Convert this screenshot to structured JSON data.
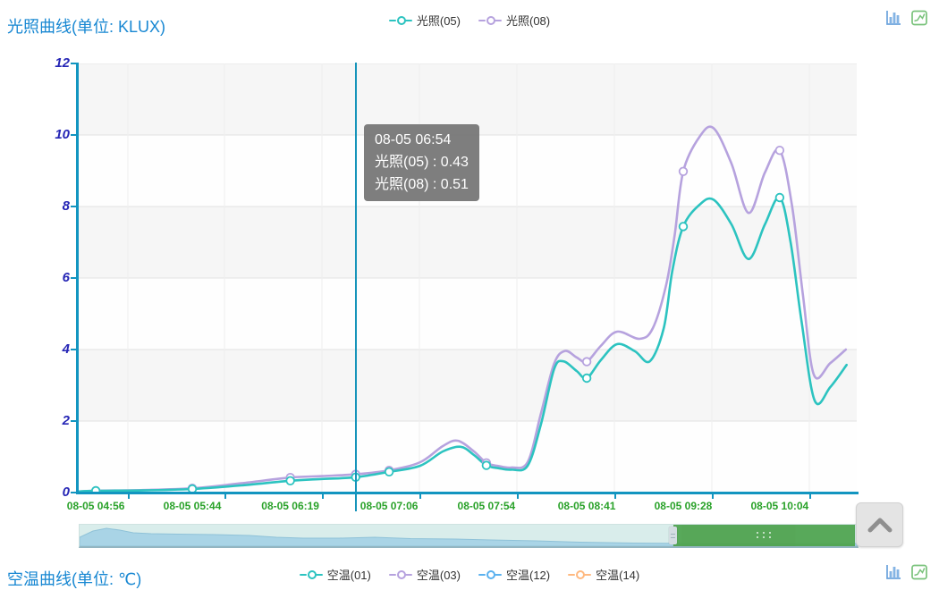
{
  "chart1": {
    "title": "光照曲线(单位: KLUX)",
    "legend": [
      {
        "label": "光照(05)",
        "color": "#2cc3c0"
      },
      {
        "label": "光照(08)",
        "color": "#b6a2de"
      }
    ],
    "toolbox": [
      {
        "icon": "bar-chart-icon"
      },
      {
        "icon": "line-chart-icon"
      }
    ]
  },
  "tooltip": {
    "lines": [
      "08-05 06:54",
      "光照(05) : 0.43",
      "光照(08) : 0.51"
    ]
  },
  "chart_data": {
    "type": "line",
    "title": "光照曲线(单位: KLUX)",
    "unit": "KLUX",
    "x_tick_labels": [
      "08-05 04:56",
      "08-05 05:44",
      "08-05 06:19",
      "08-05 07:06",
      "08-05 07:54",
      "08-05 08:41",
      "08-05 09:28",
      "08-05 10:04"
    ],
    "x_tick_pct": [
      2.2,
      14.6,
      27.2,
      39.9,
      52.4,
      65.3,
      77.7,
      90.1
    ],
    "ylim": [
      0,
      12
    ],
    "y_ticks": [
      0,
      2,
      4,
      6,
      8,
      10,
      12
    ],
    "grid": true,
    "legend_position": "top-center",
    "hover": {
      "x_pct": 35.6,
      "label": "08-05 06:54",
      "values": {
        "光照(05)": 0.43,
        "光照(08)": 0.51
      }
    },
    "axis_colors": {
      "axis_line": "#1295c0",
      "pointer": "#1694ba",
      "y_label": "#2525b5",
      "x_label": "#2aa22a"
    },
    "series": [
      {
        "name": "光照(05)",
        "color": "#2cc3c0",
        "tick_values": [
          0.05,
          0.1,
          0.33,
          0.58,
          0.76,
          3.2,
          7.44,
          8.25
        ],
        "hover_value": 0.43,
        "markers": [
          [
            2.2,
            0.05
          ],
          [
            14.6,
            0.1
          ],
          [
            27.2,
            0.33
          ],
          [
            35.6,
            0.43
          ],
          [
            39.9,
            0.58
          ],
          [
            52.4,
            0.76
          ],
          [
            65.3,
            3.2
          ],
          [
            77.7,
            7.44
          ],
          [
            90.1,
            8.25
          ]
        ],
        "points": [
          [
            0,
            0.03
          ],
          [
            2.0,
            0.05
          ],
          [
            8.3,
            0.06
          ],
          [
            14.6,
            0.1
          ],
          [
            20.9,
            0.2
          ],
          [
            27.2,
            0.33
          ],
          [
            31.3,
            0.38
          ],
          [
            35.6,
            0.43
          ],
          [
            39.9,
            0.58
          ],
          [
            43.9,
            0.75
          ],
          [
            46.8,
            1.15
          ],
          [
            49.1,
            1.28
          ],
          [
            50.8,
            1.05
          ],
          [
            52.4,
            0.76
          ],
          [
            54.0,
            0.68
          ],
          [
            55.6,
            0.64
          ],
          [
            57.7,
            0.75
          ],
          [
            59.4,
            1.9
          ],
          [
            61.1,
            3.45
          ],
          [
            62.3,
            3.67
          ],
          [
            64.0,
            3.4
          ],
          [
            65.3,
            3.2
          ],
          [
            67.1,
            3.7
          ],
          [
            69.2,
            4.15
          ],
          [
            71.5,
            3.95
          ],
          [
            73.4,
            3.67
          ],
          [
            75.2,
            4.6
          ],
          [
            76.3,
            6.2
          ],
          [
            77.7,
            7.44
          ],
          [
            79.8,
            8.05
          ],
          [
            81.6,
            8.19
          ],
          [
            83.9,
            7.5
          ],
          [
            86.1,
            6.53
          ],
          [
            88.2,
            7.5
          ],
          [
            90.1,
            8.25
          ],
          [
            91.5,
            7.0
          ],
          [
            92.9,
            4.8
          ],
          [
            94.6,
            2.57
          ],
          [
            96.6,
            2.95
          ],
          [
            98.7,
            3.57
          ]
        ]
      },
      {
        "name": "光照(08)",
        "color": "#b6a2de",
        "tick_values": [
          0.05,
          0.12,
          0.42,
          0.62,
          0.83,
          3.66,
          8.98,
          9.57
        ],
        "hover_value": 0.51,
        "markers": [
          [
            2.2,
            0.05
          ],
          [
            14.6,
            0.12
          ],
          [
            27.2,
            0.42
          ],
          [
            35.6,
            0.51
          ],
          [
            39.9,
            0.62
          ],
          [
            52.4,
            0.83
          ],
          [
            65.3,
            3.66
          ],
          [
            77.7,
            8.98
          ],
          [
            90.1,
            9.57
          ]
        ],
        "points": [
          [
            0,
            0.03
          ],
          [
            2.0,
            0.05
          ],
          [
            8.3,
            0.07
          ],
          [
            14.6,
            0.12
          ],
          [
            20.9,
            0.26
          ],
          [
            27.2,
            0.42
          ],
          [
            31.3,
            0.46
          ],
          [
            35.6,
            0.51
          ],
          [
            39.9,
            0.62
          ],
          [
            43.9,
            0.85
          ],
          [
            46.8,
            1.3
          ],
          [
            48.7,
            1.45
          ],
          [
            50.8,
            1.15
          ],
          [
            52.4,
            0.83
          ],
          [
            54.0,
            0.74
          ],
          [
            55.6,
            0.7
          ],
          [
            57.7,
            0.85
          ],
          [
            59.4,
            2.2
          ],
          [
            61.1,
            3.6
          ],
          [
            62.5,
            3.96
          ],
          [
            64.0,
            3.78
          ],
          [
            65.3,
            3.66
          ],
          [
            67.1,
            4.1
          ],
          [
            69.2,
            4.5
          ],
          [
            72.1,
            4.3
          ],
          [
            73.8,
            4.6
          ],
          [
            75.5,
            5.8
          ],
          [
            76.6,
            7.2
          ],
          [
            77.7,
            8.98
          ],
          [
            79.8,
            9.95
          ],
          [
            81.6,
            10.19
          ],
          [
            83.9,
            9.2
          ],
          [
            86.1,
            7.82
          ],
          [
            88.2,
            8.95
          ],
          [
            90.1,
            9.57
          ],
          [
            91.7,
            8.0
          ],
          [
            93.1,
            5.5
          ],
          [
            94.5,
            3.29
          ],
          [
            96.6,
            3.62
          ],
          [
            98.6,
            4.0
          ]
        ]
      }
    ]
  },
  "slider": {
    "window_start_pct": 76.3,
    "window_width_pct": 23.3,
    "colors": {
      "track": "#d9edeb",
      "shadow_fill": "#a9d4e6",
      "shadow_line": "#8fc2d8",
      "window": "#52a553",
      "window_shadow": "#3f8c40"
    },
    "shadow": [
      [
        0,
        10
      ],
      [
        15,
        17
      ],
      [
        30,
        20
      ],
      [
        45,
        18
      ],
      [
        60,
        15
      ],
      [
        80,
        14
      ],
      [
        110,
        13.5
      ],
      [
        150,
        13
      ],
      [
        190,
        12
      ],
      [
        220,
        10
      ],
      [
        250,
        9
      ],
      [
        290,
        9
      ],
      [
        330,
        10
      ],
      [
        370,
        8.5
      ],
      [
        420,
        8
      ],
      [
        460,
        7
      ],
      [
        510,
        6
      ],
      [
        560,
        4.5
      ],
      [
        620,
        3.5
      ],
      [
        700,
        3
      ],
      [
        780,
        3
      ],
      [
        870,
        3
      ]
    ]
  },
  "collapse_button": {
    "icon": "chevron-up"
  },
  "chart2": {
    "title": "空温曲线(单位: ℃)",
    "unit": "℃",
    "legend": [
      {
        "label": "空温(01)",
        "color": "#2cc3c0"
      },
      {
        "label": "空温(03)",
        "color": "#b6a2de"
      },
      {
        "label": "空温(12)",
        "color": "#5ab1ef"
      },
      {
        "label": "空温(14)",
        "color": "#ffb980"
      }
    ],
    "toolbox": [
      {
        "icon": "bar-chart-icon"
      },
      {
        "icon": "line-chart-icon"
      }
    ]
  }
}
